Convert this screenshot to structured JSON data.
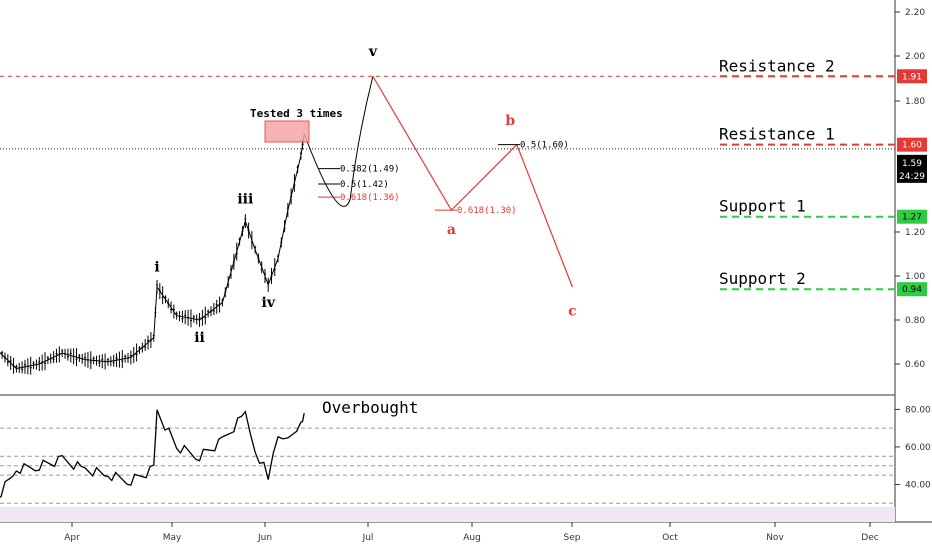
{
  "chart_data": {
    "type": "line",
    "price_axis": {
      "ticks": [
        "2.20",
        "2.00",
        "1.80",
        "1.20",
        "1.00",
        "0.80",
        "0.60"
      ],
      "ylim": [
        0.45,
        2.25
      ]
    },
    "time_axis": {
      "ticks": [
        "Apr",
        "May",
        "Jun",
        "Jul",
        "Aug",
        "Sep",
        "Oct",
        "Nov",
        "Dec"
      ]
    },
    "price_series": {
      "name": "",
      "x": [
        "Mar 1",
        "Mar 8",
        "Mar 15",
        "Mar 22",
        "Mar 29",
        "Apr 5",
        "Apr 12",
        "Apr 19",
        "Apr 26",
        "Apr 27",
        "May 3",
        "May 10",
        "May 17",
        "May 24",
        "May 27",
        "May 31",
        "Jun 3",
        "Jun 6",
        "Jun 10",
        "Jun 11"
      ],
      "y": [
        0.78,
        0.68,
        0.58,
        0.6,
        0.65,
        0.62,
        0.61,
        0.63,
        0.72,
        0.95,
        0.82,
        0.8,
        0.88,
        1.25,
        1.12,
        0.96,
        1.08,
        1.3,
        1.55,
        1.65
      ]
    },
    "projection": {
      "name": "",
      "x": [
        "Jun 11",
        "Jun 22",
        "Jul 2",
        "Jul 26",
        "Aug 15",
        "Sep 1"
      ],
      "y": [
        1.65,
        1.35,
        1.91,
        1.3,
        1.6,
        0.95
      ]
    },
    "levels": [
      {
        "label": "Resistance 2",
        "value_label": "1.91",
        "value": 1.91,
        "color": "#e53935"
      },
      {
        "label": "Resistance 1",
        "value_label": "1.60",
        "value": 1.6,
        "color": "#e53935"
      },
      {
        "label": "Support 1",
        "value_label": "1.27",
        "value": 1.27,
        "color": "#2ecc40"
      },
      {
        "label": "Support 2",
        "value_label": "0.94",
        "value": 0.94,
        "color": "#2ecc40"
      }
    ],
    "current_price": {
      "label": "1.59",
      "value": 1.59,
      "countdown": "24:29"
    },
    "wave_labels": [
      {
        "text": "i",
        "x": "Apr 27",
        "y": 1.02,
        "color": "#000"
      },
      {
        "text": "ii",
        "x": "May 10",
        "y": 0.7,
        "color": "#000"
      },
      {
        "text": "iii",
        "x": "May 24",
        "y": 1.33,
        "color": "#000"
      },
      {
        "text": "iv",
        "x": "May 31",
        "y": 0.86,
        "color": "#000"
      },
      {
        "text": "v",
        "x": "Jul 2",
        "y": 2.0,
        "color": "#000"
      },
      {
        "text": "a",
        "x": "Jul 26",
        "y": 1.19,
        "color": "#e53935"
      },
      {
        "text": "b",
        "x": "Aug 13",
        "y": 1.69,
        "color": "#e53935"
      },
      {
        "text": "c",
        "x": "Sep 1",
        "y": 0.82,
        "color": "#e53935"
      }
    ],
    "fib_labels": [
      {
        "text": "0.382(1.49)",
        "value": 1.49,
        "color": "#000"
      },
      {
        "text": "0.5(1.42)",
        "value": 1.42,
        "color": "#000"
      },
      {
        "text": "0.618(1.36)",
        "value": 1.36,
        "color": "#e53935"
      },
      {
        "text": "0.618(1.30)",
        "value": 1.3,
        "color": "#e53935"
      },
      {
        "text": "0.5(1.60)",
        "value": 1.6,
        "color": "#000"
      }
    ],
    "annotation": "Tested 3 times",
    "rsi": {
      "ticks": [
        "80.00",
        "60.00",
        "40.00"
      ],
      "ylim": [
        20,
        85
      ],
      "label": "Overbought",
      "x": [
        "Mar 1",
        "Mar 8",
        "Mar 15",
        "Mar 22",
        "Mar 29",
        "Apr 5",
        "Apr 12",
        "Apr 19",
        "Apr 26",
        "Apr 27",
        "May 3",
        "May 10",
        "May 17",
        "May 24",
        "May 27",
        "May 31",
        "Jun 3",
        "Jun 6",
        "Jun 10",
        "Jun 11"
      ],
      "y": [
        36,
        30,
        48,
        50,
        53,
        48,
        45,
        42,
        48,
        79,
        60,
        55,
        63,
        78,
        58,
        45,
        63,
        64,
        74,
        78
      ]
    }
  }
}
